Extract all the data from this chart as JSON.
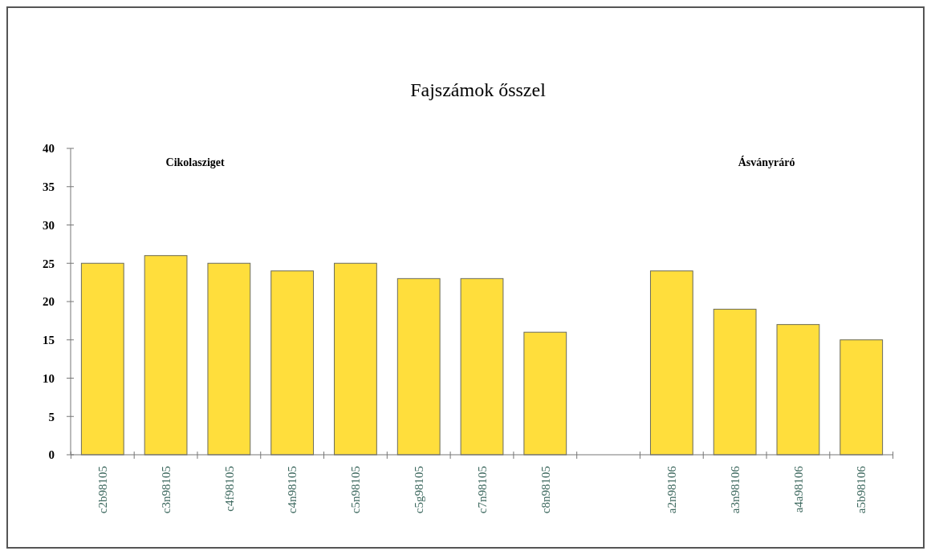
{
  "chart_data": {
    "type": "bar",
    "title": "Fajszámok ősszel",
    "categories": [
      "c2b98105",
      "c3n98105",
      "c4f98105",
      "c4n98105",
      "c5n98105",
      "c5g98105",
      "c7n98105",
      "c8n98105",
      null,
      "a2n98106",
      "a3n98106",
      "a4a98106",
      "a5b98106"
    ],
    "values": [
      25,
      26,
      25,
      24,
      25,
      23,
      23,
      16,
      null,
      24,
      19,
      17,
      15
    ],
    "color": "#ffde3c",
    "ylim": [
      0,
      40
    ],
    "yticks": [
      0,
      5,
      10,
      15,
      20,
      25,
      30,
      35,
      40
    ],
    "grid": false,
    "annotations": [
      "Cikolasziget",
      "Ásványráró"
    ]
  }
}
